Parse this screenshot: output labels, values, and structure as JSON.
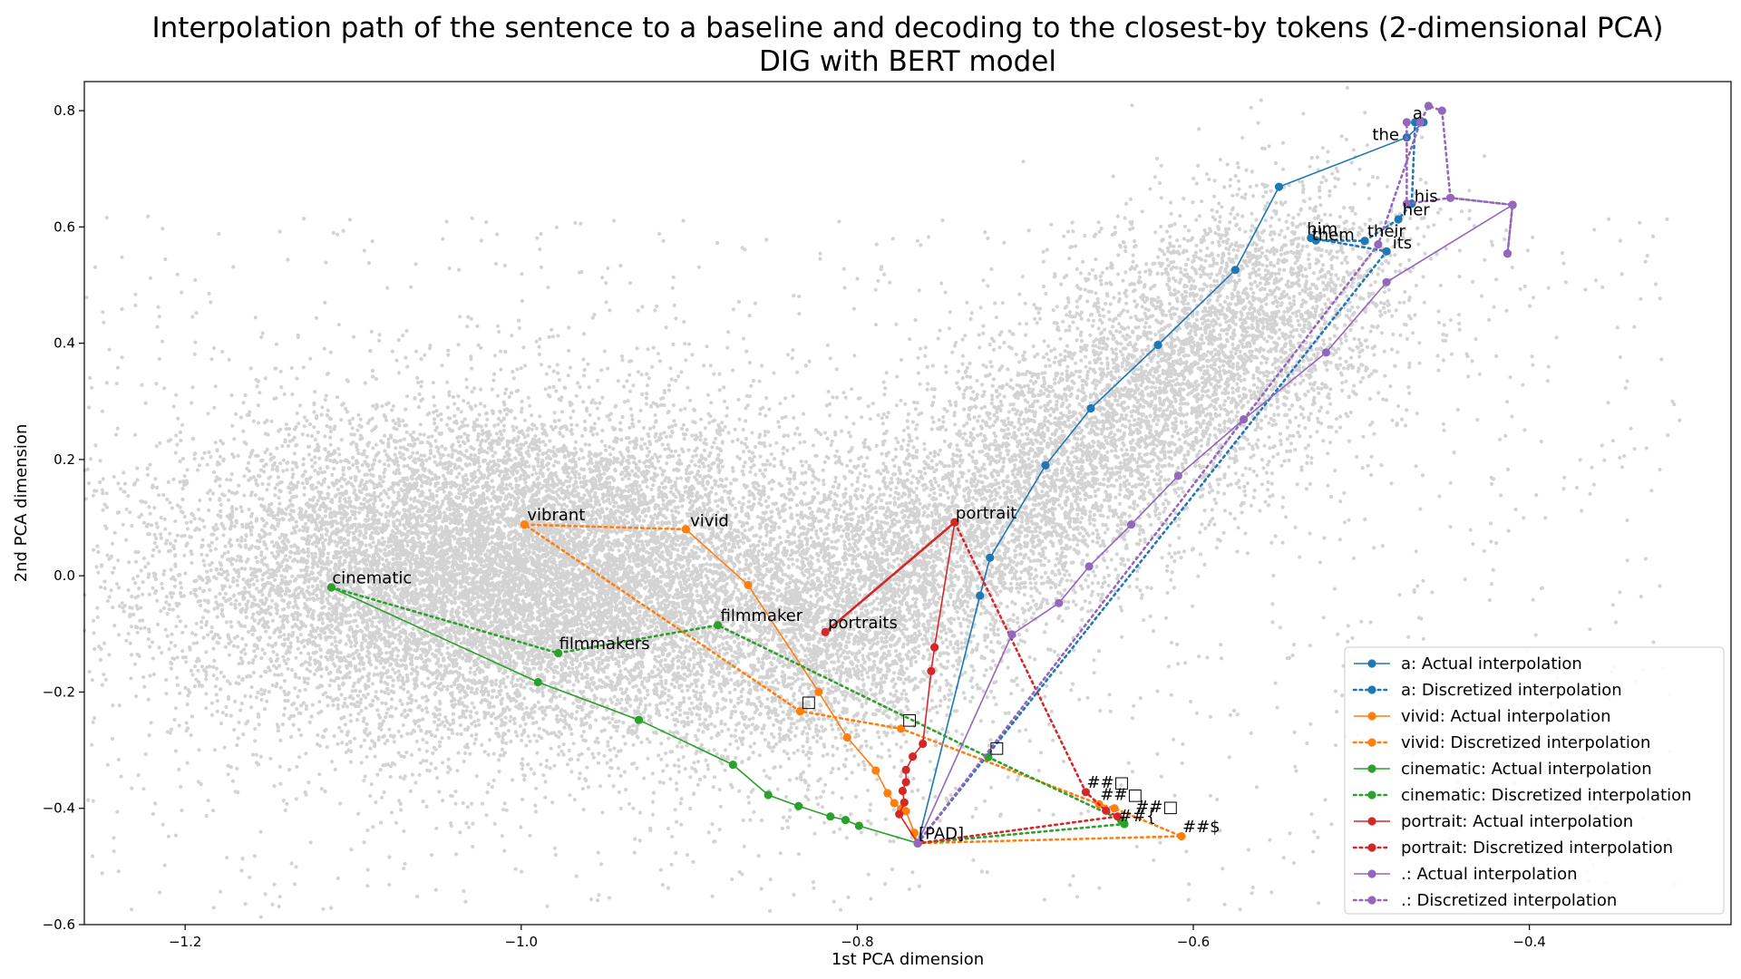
{
  "chart_data": {
    "type": "line",
    "title": "Interpolation path of the sentence to a baseline and decoding to the closest-by tokens (2-dimensional PCA)",
    "subtitle": "DIG with BERT model",
    "xlabel": "1st PCA dimension",
    "ylabel": "2nd PCA dimension",
    "xlim": [
      -1.26,
      -0.28
    ],
    "ylim": [
      -0.6,
      0.85
    ],
    "x_ticks": [
      -1.2,
      -1.0,
      -0.8,
      -0.6,
      -0.4
    ],
    "x_tick_labels": [
      "−1.2",
      "−1.0",
      "−0.8",
      "−0.6",
      "−0.4"
    ],
    "y_ticks": [
      -0.6,
      -0.4,
      -0.2,
      0.0,
      0.2,
      0.4,
      0.6,
      0.8
    ],
    "y_tick_labels": [
      "−0.6",
      "−0.4",
      "−0.2",
      "0.0",
      "0.2",
      "0.4",
      "0.6",
      "0.8"
    ],
    "grid": false,
    "legend_position": "lower-right",
    "background_color": "#d3d3d3",
    "series": [
      {
        "name": "a: Actual interpolation",
        "color": "#1f77b4",
        "style": "solid",
        "x": [
          -0.764,
          -0.727,
          -0.721,
          -0.688,
          -0.661,
          -0.621,
          -0.575,
          -0.549,
          -0.473,
          -0.463
        ],
        "y": [
          -0.46,
          -0.034,
          0.031,
          0.19,
          0.288,
          0.397,
          0.526,
          0.669,
          0.754,
          0.78
        ]
      },
      {
        "name": "a: Discretized interpolation",
        "color": "#1f77b4",
        "style": "dotted",
        "x": [
          -0.764,
          -0.485,
          -0.53,
          -0.527,
          -0.498,
          -0.478,
          -0.47,
          -0.468
        ],
        "y": [
          -0.46,
          0.558,
          0.581,
          0.577,
          0.576,
          0.613,
          0.64,
          0.78
        ]
      },
      {
        "name": "vivid: Actual interpolation",
        "color": "#ff7f0e",
        "style": "solid",
        "x": [
          -0.902,
          -0.865,
          -0.823,
          -0.806,
          -0.789,
          -0.782,
          -0.778,
          -0.774,
          -0.771,
          -0.766,
          -0.764
        ],
        "y": [
          0.08,
          -0.016,
          -0.2,
          -0.278,
          -0.335,
          -0.374,
          -0.391,
          -0.401,
          -0.405,
          -0.442,
          -0.46
        ]
      },
      {
        "name": "vivid: Discretized interpolation",
        "color": "#ff7f0e",
        "style": "dotted",
        "x": [
          -0.902,
          -0.998,
          -0.834,
          -0.774,
          -0.656,
          -0.647,
          -0.607,
          -0.764
        ],
        "y": [
          0.08,
          0.088,
          -0.233,
          -0.263,
          -0.393,
          -0.4,
          -0.448,
          -0.46
        ]
      },
      {
        "name": "cinematic: Actual interpolation",
        "color": "#2ca02c",
        "style": "solid",
        "x": [
          -1.113,
          -0.99,
          -0.93,
          -0.874,
          -0.853,
          -0.835,
          -0.816,
          -0.807,
          -0.799,
          -0.764
        ],
        "y": [
          -0.02,
          -0.183,
          -0.248,
          -0.325,
          -0.377,
          -0.396,
          -0.414,
          -0.42,
          -0.43,
          -0.46
        ]
      },
      {
        "name": "cinematic: Discretized interpolation",
        "color": "#2ca02c",
        "style": "dotted",
        "x": [
          -1.113,
          -0.978,
          -0.883,
          -0.722,
          -0.643,
          -0.641,
          -0.764
        ],
        "y": [
          -0.02,
          -0.133,
          -0.085,
          -0.312,
          -0.42,
          -0.427,
          -0.46
        ]
      },
      {
        "name": "portrait: Actual interpolation",
        "color": "#d62728",
        "style": "solid",
        "x": [
          -0.764,
          -0.775,
          -0.772,
          -0.773,
          -0.771,
          -0.771,
          -0.767,
          -0.761,
          -0.756,
          -0.754,
          -0.742
        ],
        "y": [
          -0.46,
          -0.41,
          -0.39,
          -0.37,
          -0.355,
          -0.334,
          -0.311,
          -0.289,
          -0.164,
          -0.123,
          0.092
        ]
      },
      {
        "name": "portrait: Discretized interpolation",
        "color": "#d62728",
        "style": "dotted",
        "x": [
          -0.742,
          -0.819,
          -0.742,
          -0.664,
          -0.652,
          -0.645,
          -0.764
        ],
        "y": [
          0.092,
          -0.097,
          0.092,
          -0.372,
          -0.404,
          -0.414,
          -0.46
        ]
      },
      {
        "name": ".: Actual interpolation",
        "color": "#9467bd",
        "style": "solid",
        "x": [
          -0.764,
          -0.708,
          -0.68,
          -0.662,
          -0.637,
          -0.609,
          -0.57,
          -0.521,
          -0.485,
          -0.41,
          -0.413
        ],
        "y": [
          -0.46,
          -0.101,
          -0.047,
          0.016,
          0.088,
          0.172,
          0.269,
          0.384,
          0.505,
          0.638,
          0.554
        ]
      },
      {
        "name": ".: Discretized interpolation",
        "color": "#9467bd",
        "style": "dotted",
        "x": [
          -0.764,
          -0.49,
          -0.465,
          -0.46,
          -0.452,
          -0.447,
          -0.41,
          -0.413,
          -0.41,
          -0.447,
          -0.473,
          -0.473
        ],
        "y": [
          -0.46,
          0.57,
          0.78,
          0.808,
          0.8,
          0.65,
          0.638,
          0.554,
          0.638,
          0.65,
          0.64,
          0.78
        ]
      }
    ],
    "token_labels": [
      {
        "text": "a",
        "x": -0.47,
        "y": 0.783
      },
      {
        "text": "the",
        "x": -0.494,
        "y": 0.746
      },
      {
        "text": "his",
        "x": -0.469,
        "y": 0.64
      },
      {
        "text": "her",
        "x": -0.476,
        "y": 0.617
      },
      {
        "text": "him",
        "x": -0.533,
        "y": 0.584
      },
      {
        "text": "their",
        "x": -0.497,
        "y": 0.58
      },
      {
        "text": "them",
        "x": -0.53,
        "y": 0.574
      },
      {
        "text": "its",
        "x": -0.482,
        "y": 0.56
      },
      {
        "text": "portrait",
        "x": -0.742,
        "y": 0.095
      },
      {
        "text": "vibrant",
        "x": -0.997,
        "y": 0.092
      },
      {
        "text": "vivid",
        "x": -0.9,
        "y": 0.082
      },
      {
        "text": "cinematic",
        "x": -1.113,
        "y": -0.016
      },
      {
        "text": "filmmaker",
        "x": -0.882,
        "y": -0.081
      },
      {
        "text": "portraits",
        "x": -0.818,
        "y": -0.093
      },
      {
        "text": "filmmakers",
        "x": -0.978,
        "y": -0.129
      },
      {
        "text": "□",
        "x": -0.834,
        "y": -0.229
      },
      {
        "text": "□",
        "x": -0.774,
        "y": -0.259
      },
      {
        "text": "□",
        "x": -0.722,
        "y": -0.308
      },
      {
        "text": "##□",
        "x": -0.664,
        "y": -0.368
      },
      {
        "text": "##□",
        "x": -0.656,
        "y": -0.389
      },
      {
        "text": "##□",
        "x": -0.635,
        "y": -0.41
      },
      {
        "text": "##{",
        "x": -0.645,
        "y": -0.425
      },
      {
        "text": "##$",
        "x": -0.607,
        "y": -0.444
      },
      {
        "text": "[PAD]",
        "x": -0.764,
        "y": -0.456
      }
    ]
  }
}
